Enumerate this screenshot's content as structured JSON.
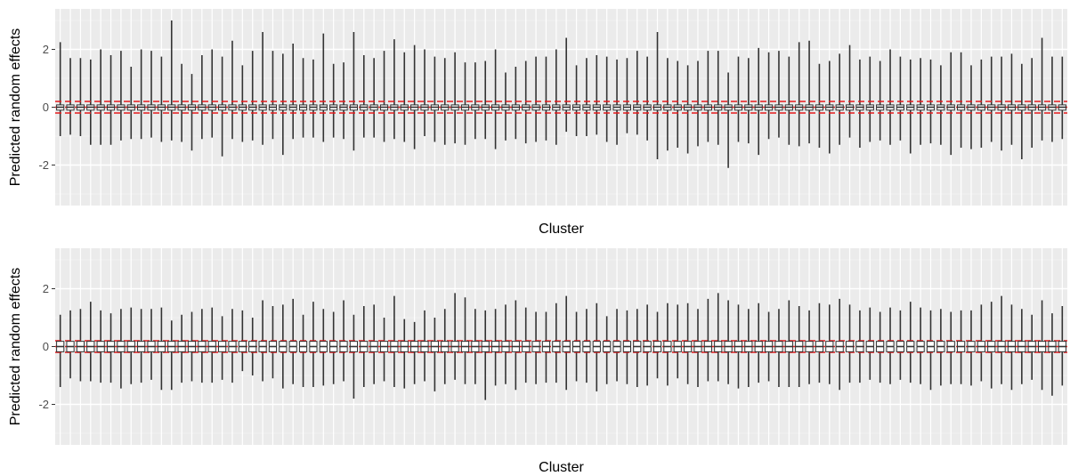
{
  "chart_data": [
    {
      "type": "boxplot",
      "xlabel": "Cluster",
      "ylabel": "Predicted random effects",
      "ylim": [
        -3.4,
        3.4
      ],
      "yticks": [
        -2,
        0,
        2
      ],
      "ytick_labels": [
        "-2",
        "0",
        "2"
      ],
      "x_ticks_shown": false,
      "grid": true,
      "n_clusters": 100,
      "reference_lines": {
        "color": "#e41a1c",
        "style": "dashed",
        "values": [
          -0.2,
          0,
          0.2
        ]
      },
      "whisker_high": [
        2.25,
        1.7,
        1.7,
        1.65,
        2.0,
        1.8,
        1.95,
        1.4,
        2.0,
        1.95,
        1.75,
        3.0,
        1.5,
        1.15,
        1.8,
        2.0,
        1.75,
        2.3,
        1.45,
        1.95,
        2.6,
        1.95,
        1.85,
        2.2,
        1.7,
        1.65,
        2.55,
        1.5,
        1.55,
        2.6,
        1.8,
        1.7,
        1.95,
        2.35,
        1.9,
        2.15,
        2.0,
        1.75,
        1.7,
        1.9,
        1.55,
        1.55,
        1.6,
        2.0,
        1.2,
        1.4,
        1.6,
        1.75,
        1.75,
        2.0,
        2.4,
        1.45,
        1.7,
        1.8,
        1.75,
        1.65,
        1.7,
        1.95,
        1.75,
        2.6,
        1.7,
        1.6,
        1.45,
        1.6,
        1.95,
        1.95,
        1.2,
        1.75,
        1.7,
        2.05,
        1.9,
        1.95,
        1.75,
        2.25,
        2.3,
        1.5,
        1.6,
        1.85,
        2.15,
        1.65,
        1.75,
        1.6,
        2.0,
        1.75,
        1.65,
        1.7,
        1.65,
        1.45,
        1.9,
        1.9,
        1.45,
        1.65,
        1.75,
        1.75,
        1.85,
        1.5,
        1.7,
        2.4,
        1.75,
        1.75
      ],
      "whisker_low": [
        -1.0,
        -0.95,
        -1.0,
        -1.3,
        -1.3,
        -1.3,
        -1.15,
        -1.1,
        -1.1,
        -1.05,
        -1.2,
        -1.15,
        -1.2,
        -1.5,
        -1.1,
        -1.05,
        -1.7,
        -1.1,
        -1.2,
        -1.15,
        -1.3,
        -1.1,
        -1.65,
        -1.1,
        -1.05,
        -1.05,
        -1.2,
        -1.05,
        -1.1,
        -1.5,
        -1.05,
        -1.05,
        -1.2,
        -1.1,
        -1.2,
        -1.45,
        -1.0,
        -1.2,
        -1.3,
        -1.25,
        -1.3,
        -1.1,
        -1.1,
        -1.45,
        -1.15,
        -1.1,
        -1.25,
        -1.2,
        -1.15,
        -1.3,
        -0.85,
        -1.0,
        -1.0,
        -0.95,
        -1.2,
        -1.3,
        -0.9,
        -0.95,
        -1.15,
        -1.8,
        -1.5,
        -1.4,
        -1.6,
        -1.35,
        -1.2,
        -1.3,
        -2.1,
        -1.2,
        -1.25,
        -1.65,
        -1.1,
        -1.05,
        -1.3,
        -1.35,
        -1.25,
        -1.4,
        -1.6,
        -1.3,
        -1.05,
        -1.4,
        -1.2,
        -1.15,
        -1.3,
        -1.15,
        -1.6,
        -1.3,
        -1.25,
        -1.3,
        -1.65,
        -1.4,
        -1.45,
        -1.4,
        -1.2,
        -1.5,
        -1.3,
        -1.8,
        -1.4,
        -1.15,
        -1.2,
        -1.1
      ],
      "box_q1": -0.1,
      "box_q3": 0.08
    },
    {
      "type": "boxplot",
      "xlabel": "Cluster",
      "ylabel": "Predicted random effects",
      "ylim": [
        -3.4,
        3.4
      ],
      "yticks": [
        -2,
        0,
        2
      ],
      "ytick_labels": [
        "-2",
        "0",
        "2"
      ],
      "x_ticks_shown": false,
      "grid": true,
      "n_clusters": 100,
      "reference_lines": {
        "color": "#e41a1c",
        "style": "dashed",
        "values": [
          -0.2,
          0,
          0.2
        ]
      },
      "whisker_high": [
        1.1,
        1.25,
        1.3,
        1.55,
        1.25,
        1.15,
        1.3,
        1.35,
        1.3,
        1.3,
        1.35,
        0.9,
        1.1,
        1.2,
        1.3,
        1.35,
        1.05,
        1.3,
        1.25,
        1.0,
        1.6,
        1.4,
        1.45,
        1.65,
        1.1,
        1.55,
        1.3,
        1.2,
        1.6,
        1.1,
        1.4,
        1.45,
        1.0,
        1.75,
        0.95,
        0.85,
        1.25,
        1.0,
        1.3,
        1.85,
        1.7,
        1.3,
        1.25,
        1.3,
        1.45,
        1.6,
        1.35,
        1.2,
        1.2,
        1.5,
        1.75,
        1.2,
        1.3,
        1.5,
        1.05,
        1.3,
        1.25,
        1.3,
        1.45,
        1.2,
        1.5,
        1.45,
        1.5,
        1.3,
        1.65,
        1.85,
        1.6,
        1.45,
        1.3,
        1.5,
        1.2,
        1.3,
        1.6,
        1.4,
        1.25,
        1.5,
        1.45,
        1.65,
        1.45,
        1.25,
        1.35,
        1.2,
        1.35,
        1.25,
        1.55,
        1.35,
        1.25,
        1.3,
        1.2,
        1.25,
        1.25,
        1.45,
        1.55,
        1.75,
        1.45,
        1.3,
        1.1,
        1.6,
        1.15,
        1.4
      ],
      "whisker_low": [
        -1.4,
        -1.1,
        -1.2,
        -1.2,
        -1.25,
        -1.25,
        -1.45,
        -1.3,
        -1.25,
        -1.15,
        -1.5,
        -1.5,
        -1.25,
        -1.2,
        -1.25,
        -1.25,
        -1.15,
        -1.25,
        -0.85,
        -1.0,
        -1.2,
        -1.1,
        -1.45,
        -1.3,
        -1.4,
        -1.4,
        -1.35,
        -1.3,
        -1.2,
        -1.8,
        -1.4,
        -1.3,
        -1.2,
        -1.4,
        -1.45,
        -1.3,
        -1.2,
        -1.55,
        -1.3,
        -1.15,
        -1.3,
        -1.3,
        -1.85,
        -1.35,
        -1.3,
        -1.5,
        -1.25,
        -1.3,
        -1.25,
        -1.25,
        -1.5,
        -1.2,
        -1.25,
        -1.55,
        -1.3,
        -1.2,
        -1.3,
        -1.4,
        -1.35,
        -1.1,
        -1.35,
        -1.1,
        -1.3,
        -1.4,
        -1.2,
        -1.2,
        -1.3,
        -1.45,
        -1.4,
        -1.25,
        -1.2,
        -1.4,
        -1.4,
        -1.4,
        -1.3,
        -1.25,
        -1.3,
        -1.5,
        -1.25,
        -1.25,
        -1.15,
        -1.25,
        -1.3,
        -1.15,
        -1.25,
        -1.3,
        -1.5,
        -1.35,
        -1.3,
        -1.3,
        -1.35,
        -1.2,
        -1.45,
        -1.3,
        -1.5,
        -1.3,
        -1.15,
        -1.5,
        -1.7,
        -1.35
      ],
      "box_q1": -0.18,
      "box_q3": 0.18
    }
  ]
}
